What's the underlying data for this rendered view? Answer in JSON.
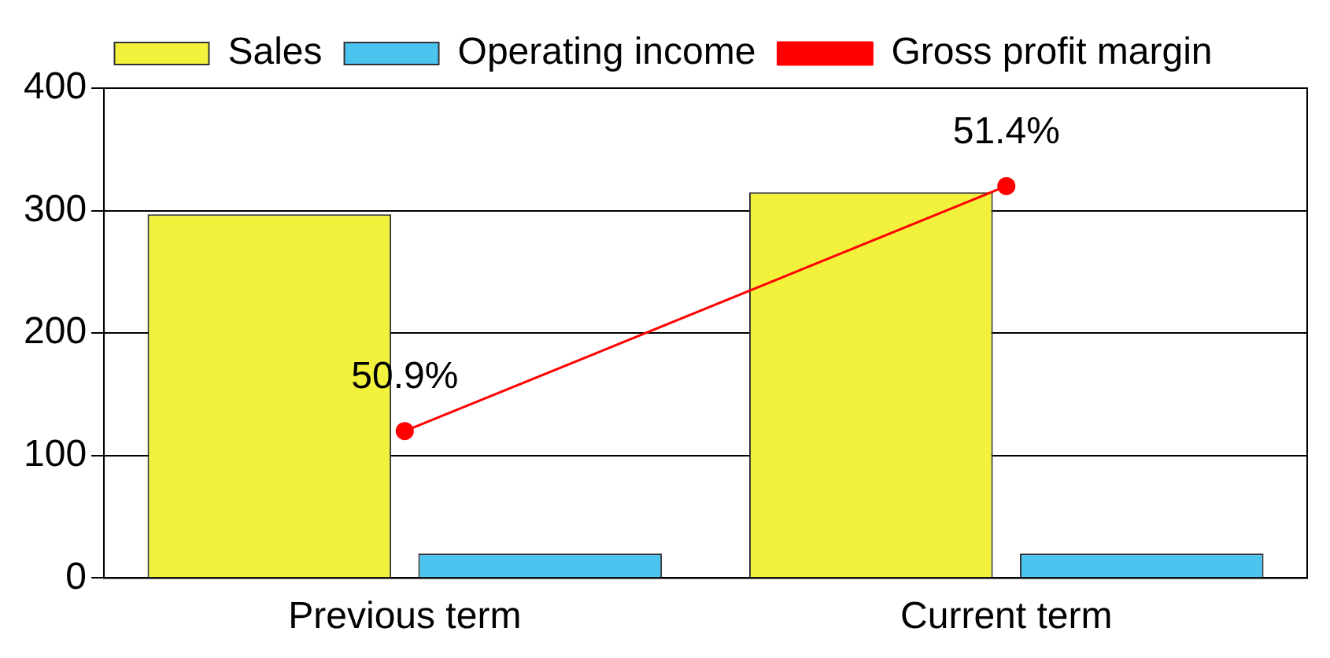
{
  "chart_data": {
    "type": "bar",
    "categories": [
      "Previous term",
      "Current term"
    ],
    "series": [
      {
        "name": "Sales",
        "color": "#f2f23c",
        "values": [
          297,
          315
        ]
      },
      {
        "name": "Operating income",
        "color": "#4cc4f0",
        "values": [
          20,
          20
        ]
      },
      {
        "name": "Gross profit margin",
        "type": "line",
        "axis": "y2",
        "color": "#ff0000",
        "values": [
          50.9,
          51.4
        ],
        "value_labels": [
          "50.9%",
          "51.4%"
        ]
      }
    ],
    "ylim": [
      0,
      400
    ],
    "yticks": [
      0,
      100,
      200,
      300,
      400
    ],
    "y2lim": [
      50.6,
      51.6
    ],
    "grid": "y",
    "legend": "top",
    "marker": "circle",
    "line_style": "solid"
  }
}
